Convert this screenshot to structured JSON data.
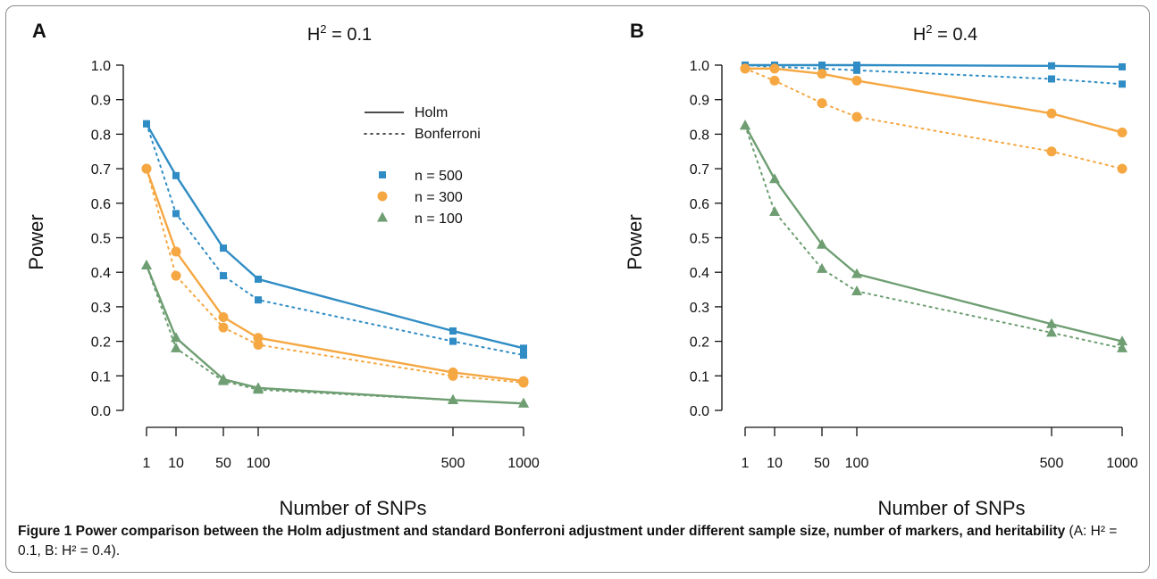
{
  "caption": {
    "label": "Figure 1",
    "title": "Power comparison between the Holm adjustment and standard Bonferroni adjustment under different sample size, number of markers, and heritability",
    "suffix": "(A: H² = 0.1, B: H² = 0.4)."
  },
  "chart_data": [
    {
      "type": "line",
      "panel": "A",
      "title": "H² = 0.1",
      "xlabel": "Number of SNPs",
      "ylabel": "Power",
      "x": [
        1,
        10,
        50,
        100,
        500,
        1000
      ],
      "x_tick_labels": [
        "1",
        "10",
        "50",
        "100",
        "500",
        "1000"
      ],
      "ylim": [
        0,
        1
      ],
      "y_ticks": [
        "0.0",
        "0.1",
        "0.2",
        "0.3",
        "0.4",
        "0.5",
        "0.6",
        "0.7",
        "0.8",
        "0.9",
        "1.0"
      ],
      "grid": false,
      "legend": {
        "placement": "top-right",
        "line_styles": [
          {
            "label": "Holm",
            "style": "solid"
          },
          {
            "label": "Bonferroni",
            "style": "dotted"
          }
        ],
        "groups": [
          {
            "label": "n = 500",
            "color": "#2f8cc4",
            "marker": "square"
          },
          {
            "label": "n = 300",
            "color": "#f5a742",
            "marker": "circle"
          },
          {
            "label": "n = 100",
            "color": "#6e9e72",
            "marker": "triangle"
          }
        ]
      },
      "series": [
        {
          "group": "n = 500",
          "method": "Holm",
          "color": "#2f8cc4",
          "marker": "square",
          "style": "solid",
          "values": [
            0.83,
            0.68,
            0.47,
            0.38,
            0.23,
            0.18
          ]
        },
        {
          "group": "n = 500",
          "method": "Bonferroni",
          "color": "#2f8cc4",
          "marker": "square",
          "style": "dotted",
          "values": [
            0.83,
            0.57,
            0.39,
            0.32,
            0.2,
            0.16
          ]
        },
        {
          "group": "n = 300",
          "method": "Holm",
          "color": "#f5a742",
          "marker": "circle",
          "style": "solid",
          "values": [
            0.7,
            0.46,
            0.27,
            0.21,
            0.11,
            0.085
          ]
        },
        {
          "group": "n = 300",
          "method": "Bonferroni",
          "color": "#f5a742",
          "marker": "circle",
          "style": "dotted",
          "values": [
            0.7,
            0.39,
            0.24,
            0.19,
            0.1,
            0.08
          ]
        },
        {
          "group": "n = 100",
          "method": "Holm",
          "color": "#6e9e72",
          "marker": "triangle",
          "style": "solid",
          "values": [
            0.42,
            0.21,
            0.09,
            0.065,
            0.03,
            0.02
          ]
        },
        {
          "group": "n = 100",
          "method": "Bonferroni",
          "color": "#6e9e72",
          "marker": "triangle",
          "style": "dotted",
          "values": [
            0.42,
            0.18,
            0.085,
            0.06,
            0.03,
            0.02
          ]
        }
      ]
    },
    {
      "type": "line",
      "panel": "B",
      "title": "H² = 0.4",
      "xlabel": "Number of SNPs",
      "ylabel": "Power",
      "x": [
        1,
        10,
        50,
        100,
        500,
        1000
      ],
      "x_tick_labels": [
        "1",
        "10",
        "50",
        "100",
        "500",
        "1000"
      ],
      "ylim": [
        0,
        1
      ],
      "y_ticks": [
        "0.0",
        "0.1",
        "0.2",
        "0.3",
        "0.4",
        "0.5",
        "0.6",
        "0.7",
        "0.8",
        "0.9",
        "1.0"
      ],
      "grid": false,
      "series": [
        {
          "group": "n = 500",
          "method": "Holm",
          "color": "#2f8cc4",
          "marker": "square",
          "style": "solid",
          "values": [
            1.0,
            1.0,
            1.0,
            1.0,
            0.998,
            0.995
          ]
        },
        {
          "group": "n = 500",
          "method": "Bonferroni",
          "color": "#2f8cc4",
          "marker": "square",
          "style": "dotted",
          "values": [
            1.0,
            0.995,
            0.99,
            0.985,
            0.96,
            0.945
          ]
        },
        {
          "group": "n = 300",
          "method": "Holm",
          "color": "#f5a742",
          "marker": "circle",
          "style": "solid",
          "values": [
            0.99,
            0.99,
            0.975,
            0.955,
            0.86,
            0.805
          ]
        },
        {
          "group": "n = 300",
          "method": "Bonferroni",
          "color": "#f5a742",
          "marker": "circle",
          "style": "dotted",
          "values": [
            0.99,
            0.955,
            0.89,
            0.85,
            0.75,
            0.7
          ]
        },
        {
          "group": "n = 100",
          "method": "Holm",
          "color": "#6e9e72",
          "marker": "triangle",
          "style": "solid",
          "values": [
            0.825,
            0.67,
            0.48,
            0.395,
            0.25,
            0.2
          ]
        },
        {
          "group": "n = 100",
          "method": "Bonferroni",
          "color": "#6e9e72",
          "marker": "triangle",
          "style": "dotted",
          "values": [
            0.825,
            0.575,
            0.41,
            0.345,
            0.225,
            0.18
          ]
        }
      ]
    }
  ]
}
